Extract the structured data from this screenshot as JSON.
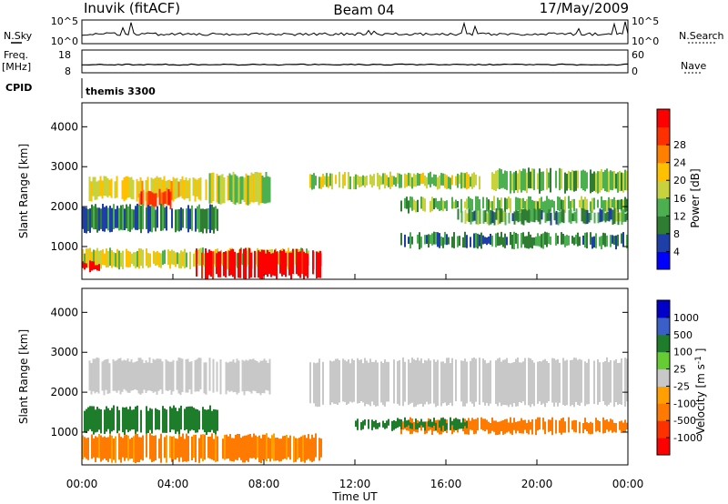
{
  "header": {
    "station": "Inuvik (fitACF)",
    "beam": "Beam 04",
    "date": "17/May/2009"
  },
  "summary": {
    "nsky_label": "N.Sky",
    "nsky_ticks": [
      "10^5",
      "10^0"
    ],
    "nsearch_label": "N.Search",
    "nsearch_ticks": [
      "10^5",
      "10^0"
    ],
    "freq_label": "Freq.",
    "freq_unit": "[MHz]",
    "freq_ticks": [
      "18",
      "8"
    ],
    "nave_label": "Nave",
    "nave_ticks": [
      "60",
      "0"
    ],
    "cpid_label": "CPID",
    "cpid_value": "themis 3300"
  },
  "colors": {
    "power": [
      "#0000ff",
      "#1f3fa8",
      "#2e7d32",
      "#4caf50",
      "#c8d23c",
      "#ffc000",
      "#ff8000",
      "#ff3000",
      "#ff0000"
    ],
    "velocity": [
      "#0000c8",
      "#3a5fc8",
      "#1e7d2a",
      "#66cc33",
      "#c8c8c8",
      "#ffa000",
      "#ff7a00",
      "#ff3000",
      "#ff0000"
    ]
  },
  "chart_data": [
    {
      "type": "heatmap",
      "name": "power",
      "xlabel": "",
      "ylabel": "Slant Range [km]",
      "xlim": [
        0,
        24
      ],
      "ylim": [
        180,
        4600
      ],
      "yticks": [
        1000,
        2000,
        3000,
        4000
      ],
      "colorbar": {
        "label": "Power [dB]",
        "ticks": [
          "4",
          "8",
          "12",
          "16",
          "20",
          "24",
          "28"
        ],
        "range": [
          0,
          30
        ]
      },
      "bands": [
        {
          "x": [
            0.3,
            5.5
          ],
          "y": [
            2200,
            2700
          ],
          "value": 18
        },
        {
          "x": [
            2.5,
            4.0
          ],
          "y": [
            2000,
            2400
          ],
          "value": 24
        },
        {
          "x": [
            5.5,
            8.3
          ],
          "y": [
            2100,
            2800
          ],
          "value": 14
        },
        {
          "x": [
            0.0,
            6.0
          ],
          "y": [
            1400,
            2000
          ],
          "value": 8
        },
        {
          "x": [
            0.0,
            10.5
          ],
          "y": [
            500,
            900
          ],
          "value": 16
        },
        {
          "x": [
            0.0,
            0.8
          ],
          "y": [
            400,
            600
          ],
          "value": 30
        },
        {
          "x": [
            5.0,
            10.5
          ],
          "y": [
            250,
            900
          ],
          "value": 30
        },
        {
          "x": [
            10.0,
            17.5
          ],
          "y": [
            2500,
            2800
          ],
          "value": 14
        },
        {
          "x": [
            14.0,
            24.0
          ],
          "y": [
            1900,
            2200
          ],
          "value": 12
        },
        {
          "x": [
            16.5,
            24.0
          ],
          "y": [
            1600,
            1900
          ],
          "value": 10
        },
        {
          "x": [
            14.0,
            24.0
          ],
          "y": [
            1000,
            1300
          ],
          "value": 9
        },
        {
          "x": [
            18.0,
            24.0
          ],
          "y": [
            2400,
            2900
          ],
          "value": 12
        }
      ]
    },
    {
      "type": "heatmap",
      "name": "velocity",
      "xlabel": "Time UT",
      "ylabel": "Slant Range [km]",
      "xlim": [
        0,
        24
      ],
      "ylim": [
        180,
        4600
      ],
      "yticks": [
        1000,
        2000,
        3000,
        4000
      ],
      "xticks": [
        "00:00",
        "04:00",
        "08:00",
        "12:00",
        "16:00",
        "20:00",
        "00:00"
      ],
      "colorbar": {
        "label": "Velocity [m s",
        "label_unit_exponent": "-1",
        "ticks": [
          "1000",
          "500",
          "100",
          "25",
          "-25",
          "-100",
          "-500",
          "-1000"
        ]
      },
      "bands": [
        {
          "x": [
            0.3,
            8.3
          ],
          "y": [
            2000,
            2800
          ],
          "value": 0
        },
        {
          "x": [
            10.0,
            24.0
          ],
          "y": [
            1700,
            2800
          ],
          "value": 0
        },
        {
          "x": [
            0.0,
            6.0
          ],
          "y": [
            1000,
            1600
          ],
          "value": 200
        },
        {
          "x": [
            0.0,
            10.5
          ],
          "y": [
            300,
            900
          ],
          "value": -150
        },
        {
          "x": [
            14.0,
            24.0
          ],
          "y": [
            1000,
            1300
          ],
          "value": -200
        },
        {
          "x": [
            12.0,
            17.0
          ],
          "y": [
            1100,
            1300
          ],
          "value": 300
        }
      ]
    }
  ]
}
